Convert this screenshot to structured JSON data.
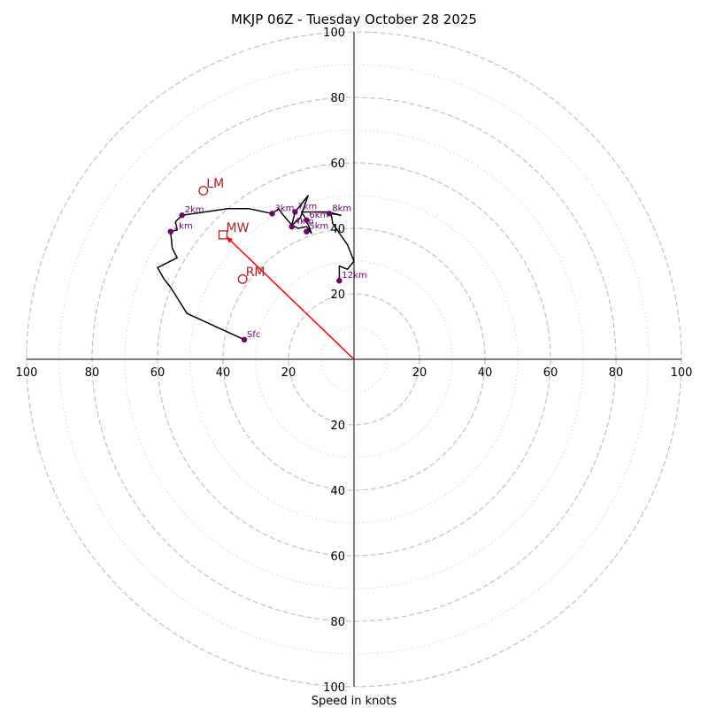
{
  "chart_data": {
    "type": "line",
    "subtype": "hodograph",
    "title": "MKJP 06Z - Tuesday October 28 2025",
    "xlabel": "Speed in knots",
    "ylabel": "",
    "max_speed": 100,
    "rings_major": [
      20,
      40,
      60,
      80,
      100
    ],
    "rings_minor": [
      10,
      30,
      50,
      70,
      90
    ],
    "tick_labels": [
      "20",
      "40",
      "60",
      "80",
      "100"
    ],
    "colors": {
      "trace": "#000000",
      "height_marker": "#6a006a",
      "storm_motion": "#b22222",
      "mean_wind_vector": "#ff0000",
      "grid": "#bdbdbd"
    },
    "wind_trace": [
      [
        -33.5,
        6
      ],
      [
        -51,
        14
      ],
      [
        -56,
        22
      ],
      [
        -58,
        24.5
      ],
      [
        -60,
        28
      ],
      [
        -54,
        31
      ],
      [
        -55.5,
        34
      ],
      [
        -56,
        39
      ],
      [
        -54,
        39.5
      ],
      [
        -54.5,
        42
      ],
      [
        -52.5,
        44
      ],
      [
        -38.5,
        46
      ],
      [
        -32,
        46
      ],
      [
        -25,
        44.5
      ],
      [
        -23,
        46
      ],
      [
        -22,
        44.5
      ],
      [
        -19,
        41
      ],
      [
        -18,
        45
      ],
      [
        -14,
        50
      ],
      [
        -16.5,
        43
      ],
      [
        -19,
        41
      ],
      [
        -17,
        40
      ],
      [
        -14.5,
        40.5
      ],
      [
        -13,
        38.5
      ],
      [
        -14.5,
        42.5
      ],
      [
        -16,
        45
      ],
      [
        -8,
        45
      ],
      [
        -4,
        44
      ],
      [
        -7,
        44.5
      ],
      [
        -6.5,
        41.5
      ],
      [
        -2,
        35
      ],
      [
        0,
        30
      ],
      [
        -2,
        27.5
      ],
      [
        -4.5,
        28.5
      ],
      [
        -4.5,
        24
      ]
    ],
    "height_markers": [
      {
        "label": "Sfc",
        "u": -33.5,
        "v": 6
      },
      {
        "label": "1km",
        "u": -56,
        "v": 39
      },
      {
        "label": "2km",
        "u": -52.5,
        "v": 44
      },
      {
        "label": "3km",
        "u": -25,
        "v": 44.5
      },
      {
        "label": "4km",
        "u": -19,
        "v": 40.5
      },
      {
        "label": "5km",
        "u": -14.5,
        "v": 39
      },
      {
        "label": "6km",
        "u": -14.5,
        "v": 42.5
      },
      {
        "label": "7km",
        "u": -18,
        "v": 45
      },
      {
        "label": "8km",
        "u": -7.5,
        "v": 44.5
      },
      {
        "label": "12km",
        "u": -4.5,
        "v": 24
      }
    ],
    "storm_motions": [
      {
        "label": "LM",
        "u": -46,
        "v": 51.5,
        "marker": "circle"
      },
      {
        "label": "RM",
        "u": -34,
        "v": 24.5,
        "marker": "circle"
      },
      {
        "label": "MW",
        "u": -40,
        "v": 38,
        "marker": "square"
      }
    ],
    "mean_wind_vector": {
      "u": -39,
      "v": 37.5
    }
  }
}
